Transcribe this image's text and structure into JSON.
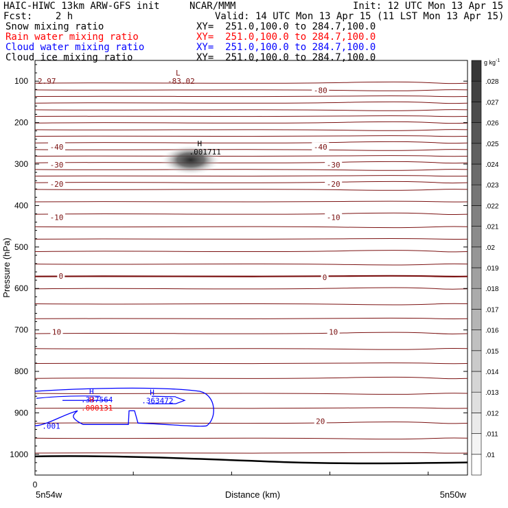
{
  "header": {
    "left_title": "HAIC-HIWC 13km ARW-GFS init",
    "center_title": "NCAR/MMM",
    "init": "Init: 12 UTC Mon 13 Apr 15",
    "fcst": "Fcst:    2 h",
    "valid": "Valid: 14 UTC Mon 13 Apr 15 (11 LST Mon 13 Apr 15)"
  },
  "fields": [
    {
      "name": "Snow mixing ratio",
      "xy": "XY=  251.0,100.0 to 284.7,100.0",
      "color": "#000000"
    },
    {
      "name": "Rain water mixing ratio",
      "xy": "XY=  251.0,100.0 to 284.7,100.0",
      "color": "#ff0000"
    },
    {
      "name": "Cloud water mixing ratio",
      "xy": "XY=  251.0,100.0 to 284.7,100.0",
      "color": "#0000ff"
    },
    {
      "name": "Cloud ice mixing ratio",
      "xy": "XY=  251.0,100.0 to 284.7,100.0",
      "color": "#000000"
    }
  ],
  "colors": {
    "temperature_contour": "#7a1010",
    "cloud_water": "#0000ff",
    "rain_water": "#ff0000",
    "ground": "#000000"
  },
  "chart_data": {
    "type": "cross-section",
    "xlabel": "Distance (km)",
    "ylabel": "Pressure (hPa)",
    "x_tick_labels": [
      "0"
    ],
    "x_endpoint_labels": [
      "5n54w",
      "5n50w"
    ],
    "ylim": [
      1050,
      50
    ],
    "y_ticks": [
      100,
      200,
      300,
      400,
      500,
      600,
      700,
      800,
      900,
      1000
    ],
    "colorbar": {
      "unit": "g kg",
      "unit_exp": "-1",
      "levels": [
        ".01",
        ".011",
        ".012",
        ".013",
        ".014",
        ".015",
        ".016",
        ".017",
        ".018",
        ".019",
        ".02",
        ".021",
        ".022",
        ".023",
        ".024",
        ".025",
        ".026",
        ".027",
        ".028"
      ]
    },
    "temperature_contour_labels": [
      {
        "text": "-80",
        "x": 0.66,
        "p": 122
      },
      {
        "text": "-40",
        "x": 0.05,
        "p": 259
      },
      {
        "text": "-40",
        "x": 0.66,
        "p": 259
      },
      {
        "text": "-30",
        "x": 0.05,
        "p": 302
      },
      {
        "text": "-30",
        "x": 0.69,
        "p": 302
      },
      {
        "text": "-20",
        "x": 0.05,
        "p": 348
      },
      {
        "text": "-20",
        "x": 0.69,
        "p": 348
      },
      {
        "text": "-10",
        "x": 0.05,
        "p": 428
      },
      {
        "text": "-10",
        "x": 0.69,
        "p": 428
      },
      {
        "text": "0",
        "x": 0.06,
        "p": 570
      },
      {
        "text": "0",
        "x": 0.67,
        "p": 573
      },
      {
        "text": "10",
        "x": 0.05,
        "p": 705
      },
      {
        "text": "10",
        "x": 0.69,
        "p": 705
      },
      {
        "text": "20",
        "x": 0.66,
        "p": 920
      }
    ],
    "extrema": [
      {
        "type": "L",
        "value": "-83.02",
        "x": 0.3,
        "p": 100,
        "color": "#7a1010"
      },
      {
        "type": "",
        "value": "2.97",
        "x": 0.0,
        "p": 100,
        "color": "#7a1010"
      },
      {
        "type": "H",
        "value": ".001711",
        "x": 0.35,
        "p": 270,
        "color": "#000000"
      },
      {
        "type": "H",
        "value": ".337564",
        "x": 0.1,
        "p": 868,
        "color": "#0000ff"
      },
      {
        "type": "H",
        "value": ".363472",
        "x": 0.24,
        "p": 870,
        "color": "#0000ff"
      },
      {
        "type": "H",
        "value": ".000131",
        "x": 0.1,
        "p": 888,
        "color": "#ff0000"
      },
      {
        "type": "",
        "value": ".001",
        "x": 0.01,
        "p": 932,
        "color": "#0000ff"
      }
    ],
    "cloud_ice_max": {
      "value": 0.028,
      "x": 0.36,
      "p": 300
    }
  }
}
